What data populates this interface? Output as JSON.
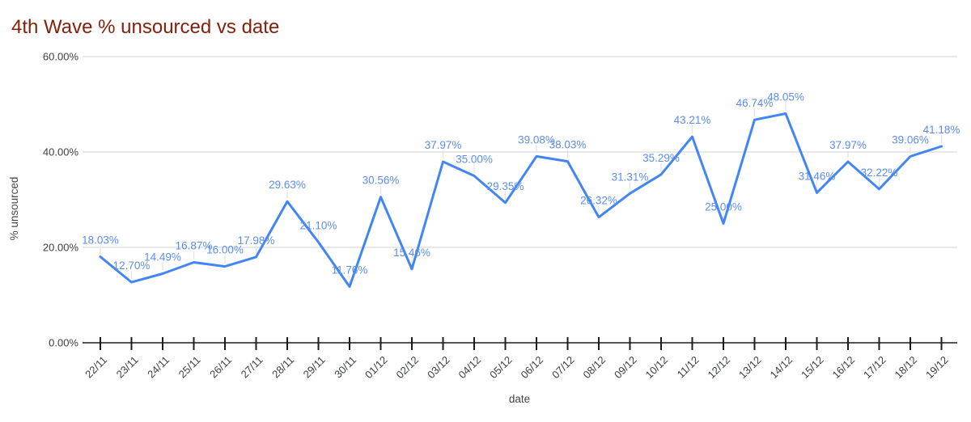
{
  "chart_data": {
    "type": "line",
    "title": "4th Wave % unsourced vs date",
    "xlabel": "date",
    "ylabel": "% unsourced",
    "categories": [
      "22/11",
      "23/11",
      "24/11",
      "25/11",
      "26/11",
      "27/11",
      "28/11",
      "29/11",
      "30/11",
      "01/12",
      "02/12",
      "03/12",
      "04/12",
      "05/12",
      "06/12",
      "07/12",
      "08/12",
      "09/12",
      "10/12",
      "11/12",
      "12/12",
      "13/12",
      "14/12",
      "15/12",
      "16/12",
      "17/12",
      "18/12",
      "19/12"
    ],
    "values": [
      18.03,
      12.7,
      14.49,
      16.87,
      16.0,
      17.98,
      29.63,
      21.1,
      11.76,
      30.56,
      15.46,
      37.97,
      35.0,
      29.35,
      39.08,
      38.03,
      26.32,
      31.31,
      35.29,
      43.21,
      25.0,
      46.74,
      48.05,
      31.46,
      37.97,
      32.22,
      39.06,
      41.18
    ],
    "point_labels": [
      "18.03%",
      "12.70%",
      "14.49%",
      "16.87%",
      "16.00%",
      "17.98%",
      "29.63%",
      "21.10%",
      "11.76%",
      "30.56%",
      "15.46%",
      "37.97%",
      "35.00%",
      "29.35%",
      "39.08%",
      "38.03%",
      "26.32%",
      "31.31%",
      "35.29%",
      "43.21%",
      "25.00%",
      "46.74%",
      "48.05%",
      "31.46%",
      "37.97%",
      "32.22%",
      "39.06%",
      "41.18%"
    ],
    "y_ticks": [
      {
        "value": 0,
        "label": "0.00%"
      },
      {
        "value": 20,
        "label": "20.00%"
      },
      {
        "value": 40,
        "label": "40.00%"
      },
      {
        "value": 60,
        "label": "60.00%"
      }
    ],
    "ylim": [
      0,
      60
    ],
    "grid": "horizontal-only",
    "legend": "none",
    "colors": {
      "line": "#4285f4",
      "data_label": "#5b8def",
      "title": "#85200c",
      "axis_label": "#3c4043",
      "axis_title": "#454545",
      "gridline": "#dadada",
      "axis_line": "#1c1c1c",
      "leader_line": "#e3e3e3",
      "background": "#ffffff"
    }
  }
}
